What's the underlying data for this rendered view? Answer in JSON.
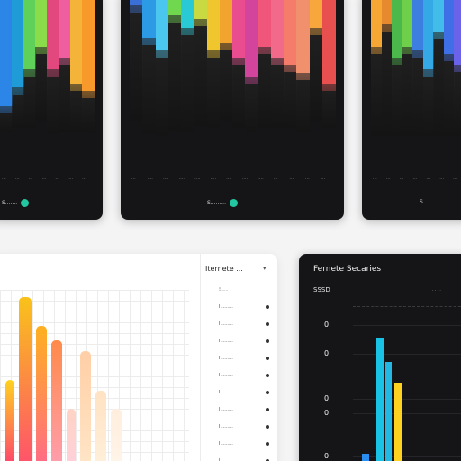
{
  "cards_top": [
    {
      "id": "card1",
      "footer_label": "S.......",
      "ticks": [
        "...",
        "...",
        "...",
        "...",
        "...",
        "...",
        "..."
      ],
      "bars": [
        {
          "top_color": "#2b86e8",
          "top_frac": 0.62,
          "dark_frac": 0.14
        },
        {
          "top_color": "#1f9bd8",
          "top_frac": 0.52,
          "dark_frac": 0.22
        },
        {
          "top_color": "#5fd15b",
          "top_frac": 0.42,
          "dark_frac": 0.32
        },
        {
          "top_color": "#8bdc4a",
          "top_frac": 0.3,
          "dark_frac": 0.4
        },
        {
          "top_color": "#e2477d",
          "top_frac": 0.42,
          "dark_frac": 0.35
        },
        {
          "top_color": "#ef5fa0",
          "top_frac": 0.36,
          "dark_frac": 0.4
        },
        {
          "top_color": "#f4b43a",
          "top_frac": 0.5,
          "dark_frac": 0.26
        },
        {
          "top_color": "#f79a2b",
          "top_frac": 0.54,
          "dark_frac": 0.22
        }
      ]
    },
    {
      "id": "card2",
      "footer_label": "S.........",
      "ticks": [
        "...",
        "....",
        "....",
        "....",
        "....",
        "....",
        "....",
        "....",
        "....",
        "...",
        "...",
        "...",
        "..."
      ],
      "bars": [
        {
          "top_color": "#3a6fd8",
          "top_frac": 0.08,
          "dark_frac": 0.62
        },
        {
          "top_color": "#2d9ae5",
          "top_frac": 0.25,
          "dark_frac": 0.52
        },
        {
          "top_color": "#4bc6ee",
          "top_frac": 0.32,
          "dark_frac": 0.46
        },
        {
          "top_color": "#6fd84f",
          "top_frac": 0.13,
          "dark_frac": 0.62
        },
        {
          "top_color": "#29c9d6",
          "top_frac": 0.2,
          "dark_frac": 0.56
        },
        {
          "top_color": "#c8d942",
          "top_frac": 0.15,
          "dark_frac": 0.58
        },
        {
          "top_color": "#f0c62e",
          "top_frac": 0.32,
          "dark_frac": 0.42
        },
        {
          "top_color": "#f2a52e",
          "top_frac": 0.28,
          "dark_frac": 0.42
        },
        {
          "top_color": "#e94c8f",
          "top_frac": 0.36,
          "dark_frac": 0.38
        },
        {
          "top_color": "#d3449c",
          "top_frac": 0.46,
          "dark_frac": 0.3
        },
        {
          "top_color": "#f0557a",
          "top_frac": 0.3,
          "dark_frac": 0.44
        },
        {
          "top_color": "#f26a8a",
          "top_frac": 0.36,
          "dark_frac": 0.38
        },
        {
          "top_color": "#f57b6a",
          "top_frac": 0.4,
          "dark_frac": 0.34
        },
        {
          "top_color": "#f1906c",
          "top_frac": 0.44,
          "dark_frac": 0.32
        },
        {
          "top_color": "#f7a73c",
          "top_frac": 0.2,
          "dark_frac": 0.5
        },
        {
          "top_color": "#e84f4f",
          "top_frac": 0.5,
          "dark_frac": 0.24
        }
      ]
    },
    {
      "id": "card3",
      "footer_label": "S.........",
      "ticks": [
        "...",
        "...",
        "...",
        "...",
        "...",
        "...",
        "..."
      ],
      "bars": [
        {
          "top_color": "#f7a733",
          "top_frac": 0.3,
          "dark_frac": 0.48
        },
        {
          "top_color": "#e68a2d",
          "top_frac": 0.18,
          "dark_frac": 0.6
        },
        {
          "top_color": "#4ab84a",
          "top_frac": 0.36,
          "dark_frac": 0.42
        },
        {
          "top_color": "#6fcf4a",
          "top_frac": 0.3,
          "dark_frac": 0.48
        },
        {
          "top_color": "#3c7fe0",
          "top_frac": 0.32,
          "dark_frac": 0.46
        },
        {
          "top_color": "#35a8e6",
          "top_frac": 0.42,
          "dark_frac": 0.36
        },
        {
          "top_color": "#42bce8",
          "top_frac": 0.22,
          "dark_frac": 0.56
        },
        {
          "top_color": "#3e6fe6",
          "top_frac": 0.34,
          "dark_frac": 0.44
        },
        {
          "top_color": "#6a62e8",
          "top_frac": 0.4,
          "dark_frac": 0.38
        }
      ]
    }
  ],
  "light_card": {
    "title": "Iternete ...",
    "caret": "▾",
    "panel_head": "S.....",
    "rows": [
      "I.........",
      "I.........",
      "I.........",
      "I.........",
      "I.........",
      "I.........",
      "I.........",
      "I.........",
      "I.........",
      "I.........",
      "I........."
    ],
    "bars": [
      {
        "color_top": "#ffd21f",
        "color_bottom": "#ff3d73",
        "frac": 0.5,
        "width": 10
      },
      {
        "color_top": "#f9c21a",
        "color_bottom": "#ff4f6e",
        "frac": 0.96,
        "width": 14
      },
      {
        "color_top": "#ffb01f",
        "color_bottom": "#ff6a8a",
        "frac": 0.8,
        "width": 12
      },
      {
        "color_top": "#ff8a4a",
        "color_bottom": "#ff9fb2",
        "frac": 0.72,
        "width": 12
      },
      {
        "color_top": "#ffd3c4",
        "color_bottom": "#ffd0dc",
        "frac": 0.34,
        "width": 10
      },
      {
        "color_top": "#ffcfa6",
        "color_bottom": "#ffe6c8",
        "frac": 0.66,
        "width": 12
      },
      {
        "color_top": "#ffe2c2",
        "color_bottom": "#fff0dc",
        "frac": 0.44,
        "width": 12
      },
      {
        "color_top": "#ffeedd",
        "color_bottom": "#fff5ea",
        "frac": 0.34,
        "width": 12
      }
    ]
  },
  "dark_card": {
    "title": "Fernete Secaries",
    "subtitle": "SSSD",
    "legend": ". . . .",
    "y_ticks": [
      "0",
      "0",
      "0",
      "0",
      "0"
    ],
    "bars": [
      {
        "color": "#19c3e6",
        "frac": 0.72
      },
      {
        "color": "#23b7e2",
        "frac": 0.58
      },
      {
        "color": "#ffd21f",
        "frac": 0.46
      },
      {
        "color": "#2a8ef0",
        "frac": 0.04
      }
    ]
  }
}
